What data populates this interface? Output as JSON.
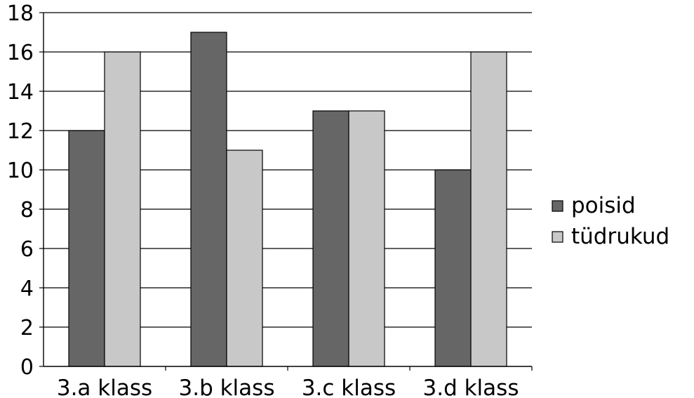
{
  "chart_data": {
    "type": "bar",
    "categories": [
      "3.a klass",
      "3.b klass",
      "3.c klass",
      "3.d klass"
    ],
    "series": [
      {
        "name": "poisid",
        "values": [
          12,
          17,
          13,
          10
        ],
        "color": "#666666"
      },
      {
        "name": "tüdrukud",
        "values": [
          16,
          11,
          13,
          16
        ],
        "color": "#c8c8c8"
      }
    ],
    "ylim": [
      0,
      18
    ],
    "yticks": [
      0,
      2,
      4,
      6,
      8,
      10,
      12,
      14,
      16,
      18
    ],
    "grid": true,
    "legend": "right",
    "title": "",
    "xlabel": "",
    "ylabel": ""
  }
}
